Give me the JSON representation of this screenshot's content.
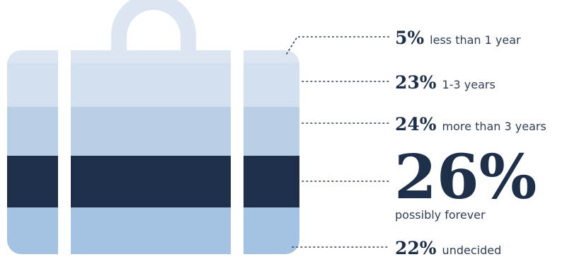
{
  "chart_data": {
    "type": "stacked-bar",
    "categories": [
      "less than 1 year",
      "1-3 years",
      "more than 3 years",
      "possibly forever",
      "undecided"
    ],
    "values": [
      5,
      23,
      24,
      26,
      22
    ],
    "percent_labels": [
      "5%",
      "23%",
      "24%",
      "26%",
      "22%"
    ],
    "title": "",
    "colors": [
      "#dce5f2",
      "#d3e0ef",
      "#b9cfe6",
      "#1e3049",
      "#a4c3e3"
    ],
    "highlight_index": 3,
    "label_color": "#1e3049"
  }
}
